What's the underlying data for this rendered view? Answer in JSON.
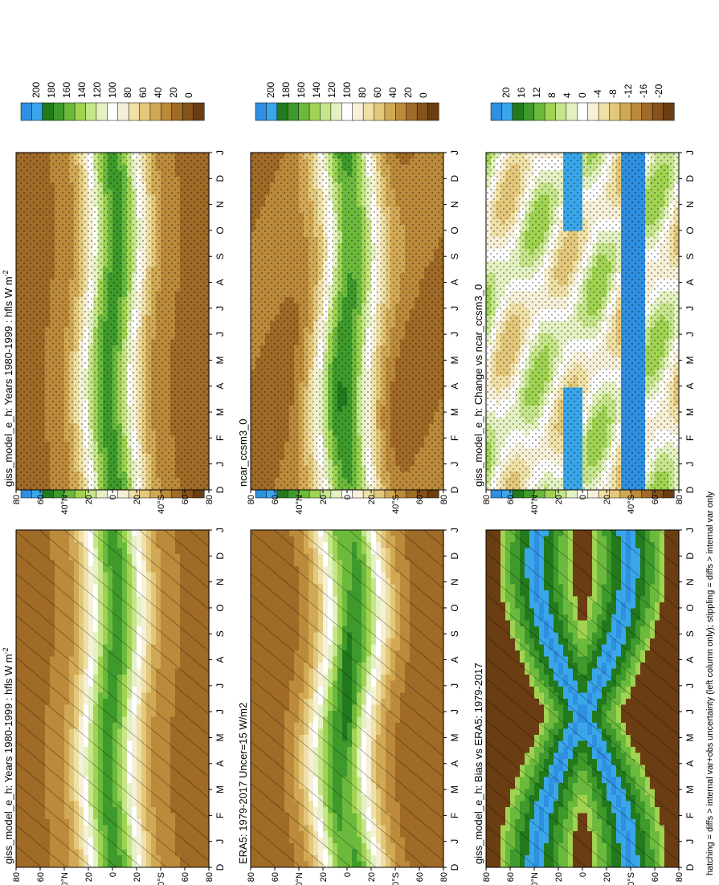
{
  "figure": {
    "footnote": "hatching = diffs > internal var+obs uncertainty (left column only); stippling = diffs > internal var only"
  },
  "scales": {
    "absolute": {
      "labels": [
        "200",
        "180",
        "160",
        "140",
        "120",
        "100",
        "80",
        "60",
        "40",
        "20",
        "0"
      ],
      "colors": [
        "#2f8fe0",
        "#3aa6ea",
        "#237a1d",
        "#3f9a2c",
        "#6cba3d",
        "#9fd351",
        "#c6e58a",
        "#e4f1c2",
        "#ffffff",
        "#f7f0d8",
        "#efe0a6",
        "#e3c77a",
        "#d1a854",
        "#bb8a3a",
        "#a06a27",
        "#85521c",
        "#6b3d13"
      ]
    },
    "difference": {
      "labels": [
        "20",
        "16",
        "12",
        "8",
        "4",
        "0",
        "-4",
        "-8",
        "-12",
        "-16",
        "-20"
      ],
      "colors": [
        "#2f8fe0",
        "#3aa6ea",
        "#237a1d",
        "#3f9a2c",
        "#6cba3d",
        "#9fd351",
        "#c6e58a",
        "#e4f1c2",
        "#ffffff",
        "#f7f0d8",
        "#efe0a6",
        "#e3c77a",
        "#d1a854",
        "#bb8a3a",
        "#a06a27",
        "#85521c",
        "#6b3d13"
      ]
    }
  },
  "axes": {
    "months": [
      "D",
      "J",
      "F",
      "M",
      "A",
      "M",
      "J",
      "J",
      "A",
      "S",
      "O",
      "N",
      "D",
      "J"
    ],
    "lat_ticks": [
      "80",
      "60",
      "40°N",
      "20",
      "0",
      "20",
      "40°S",
      "60",
      "80"
    ]
  },
  "chart_data": [
    {
      "type": "heatmap",
      "title": "giss_model_e_h: Years 1980-1999 : hfls W m",
      "title_sup": "-2",
      "scale": "absolute",
      "overlay": "hatching",
      "profile": "model"
    },
    {
      "type": "heatmap",
      "title": "ERA5: 1979-2017 Uncer=15 W/m2",
      "title_sup": "",
      "scale": "absolute",
      "overlay": "hatching",
      "profile": "obs"
    },
    {
      "type": "heatmap",
      "title": "giss_model_e_h: Bias vs ERA5: 1979-2017",
      "title_sup": "",
      "scale": "difference",
      "overlay": "hatching",
      "profile": "bias"
    },
    {
      "type": "heatmap",
      "title": "giss_model_e_h: Years 1980-1999 : hfls W m",
      "title_sup": "-2",
      "scale": "absolute",
      "overlay": "stippling",
      "profile": "model"
    },
    {
      "type": "heatmap",
      "title": "ncar_ccsm3_0",
      "title_sup": "",
      "scale": "absolute",
      "overlay": "stippling",
      "profile": "ncar"
    },
    {
      "type": "heatmap",
      "title": "giss_model_e_h: Change vs ncar_ccsm3_0",
      "title_sup": "",
      "scale": "difference",
      "overlay": "stippling",
      "profile": "change"
    }
  ]
}
